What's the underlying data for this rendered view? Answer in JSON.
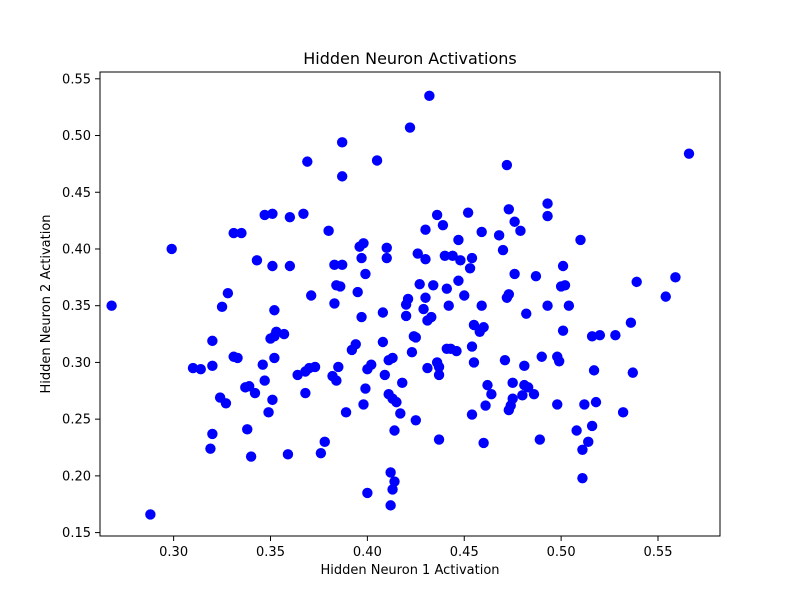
{
  "chart_data": {
    "type": "scatter",
    "title": "Hidden Neuron Activations",
    "xlabel": "Hidden Neuron 1 Activation",
    "ylabel": "Hidden Neuron 2 Activation",
    "xlim": [
      0.262,
      0.582
    ],
    "ylim": [
      0.147,
      0.556
    ],
    "xticks": [
      0.3,
      0.35,
      0.4,
      0.45,
      0.5,
      0.55
    ],
    "xtick_labels": [
      "0.30",
      "0.35",
      "0.40",
      "0.45",
      "0.50",
      "0.55"
    ],
    "yticks": [
      0.15,
      0.2,
      0.25,
      0.3,
      0.35,
      0.4,
      0.45,
      0.5,
      0.55
    ],
    "ytick_labels": [
      "0.15",
      "0.20",
      "0.25",
      "0.30",
      "0.35",
      "0.40",
      "0.45",
      "0.50",
      "0.55"
    ],
    "grid": false,
    "marker_color": "#0000ff",
    "points": [
      [
        0.268,
        0.35
      ],
      [
        0.288,
        0.166
      ],
      [
        0.299,
        0.4
      ],
      [
        0.31,
        0.295
      ],
      [
        0.314,
        0.294
      ],
      [
        0.319,
        0.224
      ],
      [
        0.32,
        0.237
      ],
      [
        0.32,
        0.319
      ],
      [
        0.32,
        0.297
      ],
      [
        0.324,
        0.269
      ],
      [
        0.325,
        0.349
      ],
      [
        0.327,
        0.264
      ],
      [
        0.328,
        0.361
      ],
      [
        0.331,
        0.414
      ],
      [
        0.331,
        0.305
      ],
      [
        0.333,
        0.304
      ],
      [
        0.335,
        0.414
      ],
      [
        0.337,
        0.278
      ],
      [
        0.338,
        0.241
      ],
      [
        0.339,
        0.279
      ],
      [
        0.34,
        0.217
      ],
      [
        0.342,
        0.273
      ],
      [
        0.343,
        0.39
      ],
      [
        0.346,
        0.298
      ],
      [
        0.347,
        0.284
      ],
      [
        0.347,
        0.43
      ],
      [
        0.349,
        0.256
      ],
      [
        0.35,
        0.321
      ],
      [
        0.351,
        0.431
      ],
      [
        0.351,
        0.267
      ],
      [
        0.351,
        0.385
      ],
      [
        0.352,
        0.346
      ],
      [
        0.352,
        0.304
      ],
      [
        0.352,
        0.323
      ],
      [
        0.353,
        0.327
      ],
      [
        0.357,
        0.325
      ],
      [
        0.359,
        0.219
      ],
      [
        0.36,
        0.428
      ],
      [
        0.36,
        0.385
      ],
      [
        0.364,
        0.289
      ],
      [
        0.367,
        0.431
      ],
      [
        0.368,
        0.273
      ],
      [
        0.368,
        0.292
      ],
      [
        0.369,
        0.477
      ],
      [
        0.37,
        0.295
      ],
      [
        0.371,
        0.359
      ],
      [
        0.373,
        0.296
      ],
      [
        0.376,
        0.22
      ],
      [
        0.378,
        0.23
      ],
      [
        0.38,
        0.416
      ],
      [
        0.382,
        0.288
      ],
      [
        0.383,
        0.352
      ],
      [
        0.383,
        0.386
      ],
      [
        0.384,
        0.368
      ],
      [
        0.384,
        0.284
      ],
      [
        0.385,
        0.296
      ],
      [
        0.386,
        0.367
      ],
      [
        0.387,
        0.494
      ],
      [
        0.387,
        0.464
      ],
      [
        0.387,
        0.386
      ],
      [
        0.389,
        0.256
      ],
      [
        0.392,
        0.311
      ],
      [
        0.394,
        0.316
      ],
      [
        0.395,
        0.362
      ],
      [
        0.396,
        0.402
      ],
      [
        0.397,
        0.34
      ],
      [
        0.397,
        0.392
      ],
      [
        0.398,
        0.405
      ],
      [
        0.398,
        0.263
      ],
      [
        0.399,
        0.378
      ],
      [
        0.399,
        0.277
      ],
      [
        0.4,
        0.185
      ],
      [
        0.4,
        0.294
      ],
      [
        0.402,
        0.298
      ],
      [
        0.405,
        0.478
      ],
      [
        0.408,
        0.318
      ],
      [
        0.408,
        0.344
      ],
      [
        0.409,
        0.289
      ],
      [
        0.41,
        0.392
      ],
      [
        0.41,
        0.401
      ],
      [
        0.411,
        0.272
      ],
      [
        0.411,
        0.302
      ],
      [
        0.412,
        0.174
      ],
      [
        0.412,
        0.203
      ],
      [
        0.413,
        0.268
      ],
      [
        0.413,
        0.188
      ],
      [
        0.413,
        0.304
      ],
      [
        0.414,
        0.195
      ],
      [
        0.414,
        0.24
      ],
      [
        0.415,
        0.265
      ],
      [
        0.417,
        0.255
      ],
      [
        0.418,
        0.282
      ],
      [
        0.42,
        0.341
      ],
      [
        0.42,
        0.351
      ],
      [
        0.421,
        0.356
      ],
      [
        0.422,
        0.507
      ],
      [
        0.423,
        0.309
      ],
      [
        0.424,
        0.323
      ],
      [
        0.425,
        0.322
      ],
      [
        0.425,
        0.249
      ],
      [
        0.426,
        0.396
      ],
      [
        0.427,
        0.369
      ],
      [
        0.429,
        0.347
      ],
      [
        0.43,
        0.391
      ],
      [
        0.43,
        0.417
      ],
      [
        0.43,
        0.357
      ],
      [
        0.431,
        0.337
      ],
      [
        0.431,
        0.295
      ],
      [
        0.432,
        0.535
      ],
      [
        0.433,
        0.34
      ],
      [
        0.434,
        0.368
      ],
      [
        0.436,
        0.3
      ],
      [
        0.436,
        0.43
      ],
      [
        0.437,
        0.296
      ],
      [
        0.437,
        0.289
      ],
      [
        0.437,
        0.232
      ],
      [
        0.439,
        0.421
      ],
      [
        0.44,
        0.394
      ],
      [
        0.441,
        0.365
      ],
      [
        0.441,
        0.312
      ],
      [
        0.442,
        0.35
      ],
      [
        0.443,
        0.312
      ],
      [
        0.444,
        0.394
      ],
      [
        0.446,
        0.31
      ],
      [
        0.447,
        0.408
      ],
      [
        0.447,
        0.372
      ],
      [
        0.448,
        0.39
      ],
      [
        0.45,
        0.359
      ],
      [
        0.452,
        0.432
      ],
      [
        0.453,
        0.383
      ],
      [
        0.454,
        0.392
      ],
      [
        0.454,
        0.314
      ],
      [
        0.454,
        0.254
      ],
      [
        0.455,
        0.333
      ],
      [
        0.455,
        0.3
      ],
      [
        0.458,
        0.327
      ],
      [
        0.459,
        0.35
      ],
      [
        0.459,
        0.415
      ],
      [
        0.46,
        0.331
      ],
      [
        0.46,
        0.229
      ],
      [
        0.461,
        0.262
      ],
      [
        0.462,
        0.28
      ],
      [
        0.464,
        0.272
      ],
      [
        0.468,
        0.412
      ],
      [
        0.47,
        0.399
      ],
      [
        0.471,
        0.302
      ],
      [
        0.472,
        0.474
      ],
      [
        0.472,
        0.357
      ],
      [
        0.473,
        0.435
      ],
      [
        0.473,
        0.36
      ],
      [
        0.473,
        0.258
      ],
      [
        0.474,
        0.262
      ],
      [
        0.475,
        0.268
      ],
      [
        0.475,
        0.282
      ],
      [
        0.476,
        0.378
      ],
      [
        0.476,
        0.424
      ],
      [
        0.479,
        0.416
      ],
      [
        0.48,
        0.271
      ],
      [
        0.481,
        0.297
      ],
      [
        0.481,
        0.28
      ],
      [
        0.482,
        0.343
      ],
      [
        0.483,
        0.278
      ],
      [
        0.486,
        0.272
      ],
      [
        0.487,
        0.376
      ],
      [
        0.489,
        0.232
      ],
      [
        0.49,
        0.305
      ],
      [
        0.493,
        0.44
      ],
      [
        0.493,
        0.429
      ],
      [
        0.493,
        0.35
      ],
      [
        0.498,
        0.263
      ],
      [
        0.498,
        0.305
      ],
      [
        0.499,
        0.301
      ],
      [
        0.5,
        0.367
      ],
      [
        0.501,
        0.385
      ],
      [
        0.501,
        0.328
      ],
      [
        0.502,
        0.368
      ],
      [
        0.504,
        0.35
      ],
      [
        0.508,
        0.24
      ],
      [
        0.51,
        0.408
      ],
      [
        0.511,
        0.198
      ],
      [
        0.511,
        0.223
      ],
      [
        0.512,
        0.263
      ],
      [
        0.514,
        0.23
      ],
      [
        0.516,
        0.323
      ],
      [
        0.516,
        0.244
      ],
      [
        0.517,
        0.293
      ],
      [
        0.518,
        0.265
      ],
      [
        0.52,
        0.324
      ],
      [
        0.528,
        0.324
      ],
      [
        0.532,
        0.256
      ],
      [
        0.536,
        0.335
      ],
      [
        0.537,
        0.291
      ],
      [
        0.539,
        0.371
      ],
      [
        0.554,
        0.358
      ],
      [
        0.559,
        0.375
      ],
      [
        0.566,
        0.484
      ]
    ]
  }
}
